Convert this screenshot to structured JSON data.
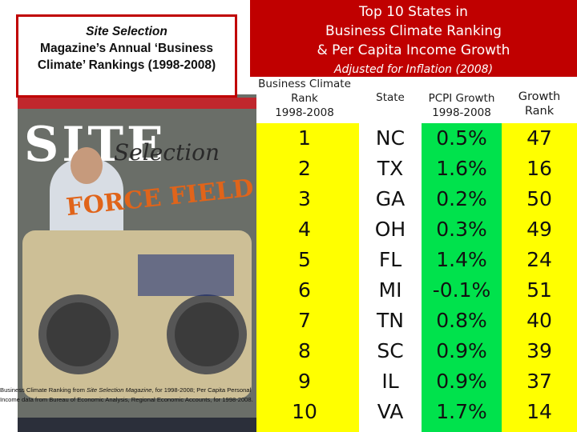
{
  "title": {
    "line1": "Top 10 States in",
    "line2": "Business Climate Ranking",
    "line3": "& Per Capita Income Growth",
    "subtitle": "Adjusted for Inflation (2008)"
  },
  "left_caption": {
    "line1": "Site Selection",
    "line2": "Magazine’s Annual ‘Business",
    "line3": "Climate’ Rankings (1998-2008)"
  },
  "magazine": {
    "masthead_site": "SITE",
    "masthead_selection": "Selection",
    "cover_headline": "FORCE FIELD"
  },
  "source_note": {
    "part1": "Business Climate Ranking from ",
    "part2": "Site Selection Magazine",
    "part3": ", for 1998-2008; Per Capita Personal Income data from Bureau of Economic Analysis, Regional Economic Accounts, for 1998-2008."
  },
  "table": {
    "headers": {
      "rank": [
        "Business Climate",
        "Rank",
        "1998-2008"
      ],
      "state": [
        "State"
      ],
      "growth": [
        "PCPI Growth",
        "1998-2008"
      ],
      "growth_rank": [
        "Growth",
        "Rank"
      ]
    },
    "rows": [
      {
        "rank": "1",
        "state": "NC",
        "growth": "0.5%",
        "growth_rank": "47"
      },
      {
        "rank": "2",
        "state": "TX",
        "growth": "1.6%",
        "growth_rank": "16"
      },
      {
        "rank": "3",
        "state": "GA",
        "growth": "0.2%",
        "growth_rank": "50"
      },
      {
        "rank": "4",
        "state": "OH",
        "growth": "0.3%",
        "growth_rank": "49"
      },
      {
        "rank": "5",
        "state": "FL",
        "growth": "1.4%",
        "growth_rank": "24"
      },
      {
        "rank": "6",
        "state": "MI",
        "growth": "-0.1%",
        "growth_rank": "51"
      },
      {
        "rank": "7",
        "state": "TN",
        "growth": "0.8%",
        "growth_rank": "40"
      },
      {
        "rank": "8",
        "state": "SC",
        "growth": "0.9%",
        "growth_rank": "39"
      },
      {
        "rank": "9",
        "state": "IL",
        "growth": "0.9%",
        "growth_rank": "37"
      },
      {
        "rank": "10",
        "state": "VA",
        "growth": "1.7%",
        "growth_rank": "14"
      }
    ]
  },
  "colors": {
    "title_band": "#c00000",
    "rank_columns": "#ffff00",
    "growth_column": "#00e24c"
  }
}
